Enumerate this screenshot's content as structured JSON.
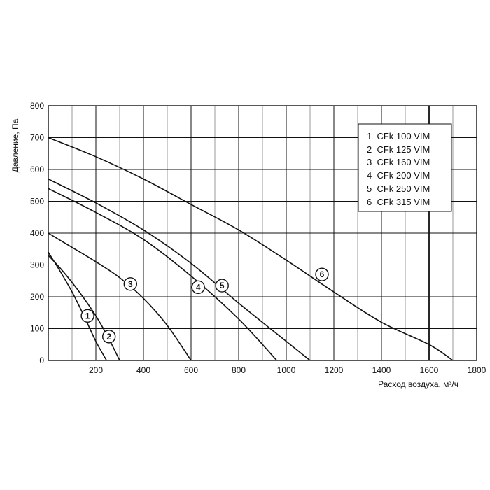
{
  "chart_data": {
    "type": "line",
    "xlabel": "Расход воздуха, м³/ч",
    "ylabel": "Давление, Па",
    "xlim": [
      0,
      1800
    ],
    "ylim": [
      0,
      800
    ],
    "x_ticks": [
      200,
      400,
      600,
      800,
      1000,
      1200,
      1400,
      1600,
      1800
    ],
    "y_ticks": [
      0,
      100,
      200,
      300,
      400,
      500,
      600,
      700,
      800
    ],
    "grid": true,
    "legend_position": "top-right",
    "legend": [
      "1  CFk 100 VIM",
      "2  CFk 125 VIM",
      "3  CFk 160 VIM",
      "4  CFk 200 VIM",
      "5  CFk 250 VIM",
      "6  CFk 315 VIM"
    ],
    "series": [
      {
        "name": "1",
        "marker": {
          "label": "1",
          "x": 165,
          "y": 140
        },
        "x": [
          0,
          50,
          100,
          150,
          200,
          245
        ],
        "y": [
          340,
          280,
          215,
          140,
          60,
          0
        ]
      },
      {
        "name": "2",
        "marker": {
          "label": "2",
          "x": 255,
          "y": 75
        },
        "x": [
          0,
          50,
          100,
          150,
          200,
          250,
          300
        ],
        "y": [
          330,
          290,
          245,
          195,
          140,
          75,
          0
        ]
      },
      {
        "name": "3",
        "marker": {
          "label": "3",
          "x": 345,
          "y": 240
        },
        "x": [
          0,
          100,
          200,
          300,
          400,
          500,
          600
        ],
        "y": [
          400,
          355,
          310,
          260,
          195,
          110,
          0
        ]
      },
      {
        "name": "4",
        "marker": {
          "label": "4",
          "x": 630,
          "y": 230
        },
        "x": [
          0,
          200,
          400,
          600,
          800,
          960
        ],
        "y": [
          540,
          465,
          380,
          265,
          130,
          0
        ]
      },
      {
        "name": "5",
        "marker": {
          "label": "5",
          "x": 730,
          "y": 235
        },
        "x": [
          0,
          200,
          400,
          600,
          800,
          1000,
          1100
        ],
        "y": [
          570,
          495,
          410,
          305,
          180,
          60,
          0
        ]
      },
      {
        "name": "6",
        "marker": {
          "label": "6",
          "x": 1150,
          "y": 270
        },
        "x": [
          0,
          200,
          400,
          600,
          800,
          1000,
          1200,
          1400,
          1600,
          1700
        ],
        "y": [
          700,
          640,
          570,
          490,
          410,
          315,
          215,
          120,
          50,
          0
        ]
      }
    ]
  }
}
